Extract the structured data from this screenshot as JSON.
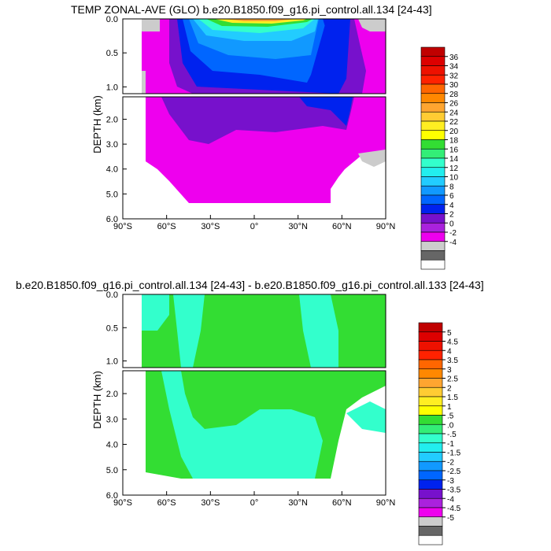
{
  "chart_data": [
    {
      "type": "heatmap",
      "title": "TEMP ZONAL-AVE (GLO) b.e20.B1850.f09_g16.pi_control.all.134 [24-43]",
      "ylabel": "DEPTH (km)",
      "xticks": [
        "90°S",
        "60°S",
        "30°S",
        "0°",
        "30°N",
        "60°N",
        "90°N"
      ],
      "yticks_upper": [
        "0.0",
        "0.5",
        "1.0"
      ],
      "yticks_lower": [
        "2.0",
        "3.0",
        "4.0",
        "5.0",
        "6.0"
      ],
      "xlim": [
        -90,
        90
      ],
      "ylim": [
        0,
        6.0
      ],
      "colorbar": {
        "labels": [
          "36",
          "34",
          "32",
          "30",
          "28",
          "26",
          "24",
          "22",
          "20",
          "18",
          "16",
          "14",
          "12",
          "10",
          "8",
          "6",
          "4",
          "2",
          "0",
          "-2",
          "-4"
        ],
        "colors": [
          "#c00000",
          "#dd0000",
          "#ee1100",
          "#ff2200",
          "#ff6600",
          "#ff8800",
          "#ffa530",
          "#ffcc33",
          "#ffee22",
          "#ffff00",
          "#33dd33",
          "#33ee77",
          "#33ffcc",
          "#22eeee",
          "#22ccff",
          "#1199ff",
          "#0066ff",
          "#0022ee",
          "#7711cc",
          "#aa22dd",
          "#ee00ee",
          "#cccccc",
          "#666666",
          "#ffffff"
        ]
      }
    },
    {
      "type": "heatmap",
      "title": "b.e20.B1850.f09_g16.pi_control.all.134 [24-43] - b.e20.B1850.f09_g16.pi_control.all.133 [24-43]",
      "ylabel": "DEPTH (km)",
      "xticks": [
        "90°S",
        "60°S",
        "30°S",
        "0°",
        "30°N",
        "60°N",
        "90°N"
      ],
      "yticks_upper": [
        "0.0",
        "0.5",
        "1.0"
      ],
      "yticks_lower": [
        "2.0",
        "3.0",
        "4.0",
        "5.0",
        "6.0"
      ],
      "xlim": [
        -90,
        90
      ],
      "ylim": [
        0,
        6.0
      ],
      "colorbar": {
        "labels": [
          "5",
          "4.5",
          "4",
          "3.5",
          "3",
          "2.5",
          "2",
          "1.5",
          "1",
          ".5",
          ".0",
          "-.5",
          "-1",
          "-1.5",
          "-2",
          "-2.5",
          "-3",
          "-3.5",
          "-4",
          "-4.5",
          "-5"
        ],
        "colors": [
          "#c00000",
          "#dd0000",
          "#ee1100",
          "#ff2200",
          "#ff6600",
          "#ff8800",
          "#ffa530",
          "#ffcc33",
          "#ffee22",
          "#ffff00",
          "#33dd33",
          "#33ee77",
          "#33ffcc",
          "#22eeee",
          "#22ccff",
          "#1199ff",
          "#0066ff",
          "#0022ee",
          "#7711cc",
          "#aa22dd",
          "#ee00ee",
          "#cccccc",
          "#666666",
          "#ffffff"
        ]
      }
    }
  ]
}
